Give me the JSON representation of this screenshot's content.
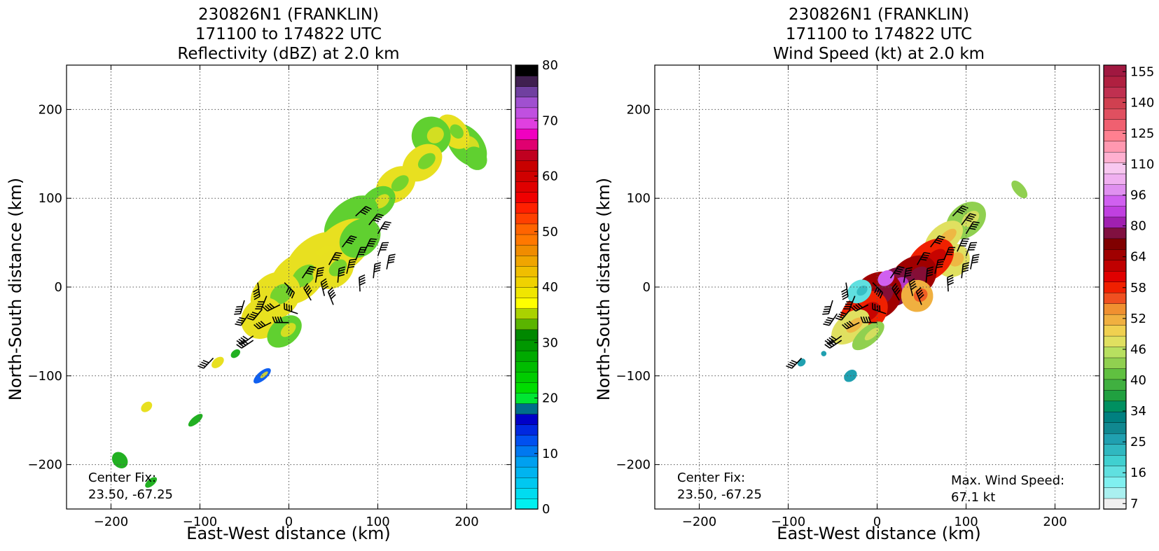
{
  "chart_data": [
    {
      "type": "heatmap",
      "title_lines": [
        "230826N1 (FRANKLIN)",
        "171100 to 174822 UTC",
        "Reflectivity (dBZ) at 2.0 km"
      ],
      "xlabel": "East-West distance (km)",
      "ylabel": "North-South distance (km)",
      "xlim": [
        -250,
        250
      ],
      "ylim": [
        -250,
        250
      ],
      "xticks": [
        -200,
        -100,
        0,
        100,
        200
      ],
      "yticks": [
        -200,
        -100,
        0,
        100,
        200
      ],
      "grid": true,
      "annotations": [
        {
          "text_lines": [
            "Center Fix:",
            "23.50, -67.25"
          ],
          "position": "bottom-left"
        }
      ],
      "colorbar": {
        "min": 0,
        "max": 80,
        "ticks": [
          0,
          10,
          20,
          30,
          40,
          50,
          60,
          70,
          80
        ],
        "colors": [
          "#00f0f0",
          "#00dcf0",
          "#00c8f0",
          "#00b4f0",
          "#00a0f0",
          "#0078f0",
          "#0050f0",
          "#0028e0",
          "#0000c8",
          "#006e8a",
          "#00e632",
          "#00dc00",
          "#00cc00",
          "#00bc00",
          "#00aa00",
          "#009800",
          "#008800",
          "#5ab400",
          "#aad200",
          "#ffff00",
          "#f0e600",
          "#f0d200",
          "#f0be00",
          "#f0a500",
          "#f08c00",
          "#ff7800",
          "#ff6400",
          "#ff4000",
          "#ff2000",
          "#f00000",
          "#e00000",
          "#d00000",
          "#c80000",
          "#c00020",
          "#e00070",
          "#f000c0",
          "#e040e0",
          "#c050e0",
          "#a050d0",
          "#7040a0",
          "#402050",
          "#000000"
        ]
      },
      "blobs": [
        [
          200,
          160,
          18,
          28,
          0.6
        ],
        [
          185,
          175,
          15,
          22,
          0.7
        ],
        [
          210,
          145,
          12,
          14,
          0.6
        ],
        [
          160,
          170,
          22,
          22,
          0.6
        ],
        [
          150,
          140,
          25,
          18,
          0.7
        ],
        [
          120,
          115,
          25,
          18,
          0.7
        ],
        [
          100,
          95,
          22,
          16,
          0.6
        ],
        [
          70,
          75,
          35,
          22,
          0.6
        ],
        [
          60,
          45,
          40,
          25,
          0.7
        ],
        [
          30,
          30,
          40,
          25,
          0.7
        ],
        [
          10,
          10,
          35,
          25,
          0.7
        ],
        [
          -15,
          -10,
          30,
          25,
          0.7
        ],
        [
          -30,
          -35,
          25,
          22,
          0.7
        ],
        [
          50,
          20,
          25,
          20,
          0.7
        ],
        [
          80,
          55,
          25,
          20,
          0.6
        ],
        [
          -5,
          -50,
          22,
          15,
          0.6
        ],
        [
          -80,
          -85,
          8,
          5,
          0.7
        ],
        [
          -60,
          -75,
          6,
          4,
          0.4
        ],
        [
          -30,
          -100,
          12,
          5,
          0.2
        ],
        [
          -160,
          -135,
          7,
          5,
          0.0
        ],
        [
          -105,
          -150,
          10,
          4,
          0.4
        ],
        [
          -190,
          -195,
          8,
          10,
          0.5
        ],
        [
          -155,
          -220,
          8,
          4,
          0.4
        ]
      ],
      "dbz_colors": {
        "light_green": "#60d030",
        "green": "#22b022",
        "dark_green": "#0aa010",
        "yellow": "#e8e020",
        "orange": "#f0c020",
        "blue": "#1060f0"
      },
      "barbs": [
        [
          75,
          80
        ],
        [
          90,
          70
        ],
        [
          100,
          60
        ],
        [
          85,
          40
        ],
        [
          100,
          35
        ],
        [
          110,
          20
        ],
        [
          95,
          10
        ],
        [
          60,
          45
        ],
        [
          75,
          30
        ],
        [
          65,
          15
        ],
        [
          80,
          -5
        ],
        [
          45,
          25
        ],
        [
          55,
          5
        ],
        [
          40,
          -10
        ],
        [
          30,
          5
        ],
        [
          15,
          10
        ],
        [
          25,
          -15
        ],
        [
          10,
          -30
        ],
        [
          -10,
          -20
        ],
        [
          -5,
          5
        ],
        [
          -25,
          -10
        ],
        [
          -30,
          -25
        ],
        [
          -45,
          -30
        ],
        [
          -50,
          -15
        ],
        [
          -35,
          5
        ],
        [
          -20,
          -40
        ],
        [
          -40,
          -55
        ],
        [
          0,
          -40
        ],
        [
          50,
          -20
        ],
        [
          -85,
          -80
        ],
        [
          -40,
          -60
        ]
      ]
    },
    {
      "type": "heatmap",
      "title_lines": [
        "230826N1 (FRANKLIN)",
        "171100 to 174822 UTC",
        "Wind Speed (kt) at 2.0 km"
      ],
      "xlabel": "East-West distance (km)",
      "ylabel": "North-South distance (km)",
      "xlim": [
        -250,
        250
      ],
      "ylim": [
        -250,
        250
      ],
      "xticks": [
        -200,
        -100,
        0,
        100,
        200
      ],
      "yticks": [
        -200,
        -100,
        0,
        100,
        200
      ],
      "grid": true,
      "annotations": [
        {
          "text_lines": [
            "Center Fix:",
            "23.50, -67.25"
          ],
          "position": "bottom-left"
        },
        {
          "text_lines": [
            "Max. Wind Speed:",
            "67.1 kt"
          ],
          "position": "bottom-right"
        }
      ],
      "colorbar": {
        "min": 7,
        "max": 160,
        "ticks": [
          7,
          16,
          25,
          34,
          40,
          46,
          52,
          58,
          64,
          80,
          96,
          110,
          125,
          140,
          155
        ],
        "colors": [
          "#f0f0f0",
          "#aaf0f0",
          "#80f0f0",
          "#60e0e0",
          "#40d0d0",
          "#30b8c0",
          "#20a0b0",
          "#108890",
          "#008080",
          "#009060",
          "#20a040",
          "#40b040",
          "#60c040",
          "#90d050",
          "#b8e060",
          "#e0e060",
          "#f0d050",
          "#f0b040",
          "#f09030",
          "#f05020",
          "#f02000",
          "#e00000",
          "#c00000",
          "#a00000",
          "#800000",
          "#801040",
          "#a020b0",
          "#c040e0",
          "#d060f0",
          "#e090f0",
          "#f0b0f0",
          "#f8c8f0",
          "#ffb0d0",
          "#ff98b0",
          "#ff8090",
          "#f06070",
          "#e05060",
          "#d04050",
          "#c03050",
          "#b02040",
          "#a01840"
        ]
      },
      "blobs": [
        [
          160,
          110,
          6,
          12,
          0.45
        ],
        [
          100,
          75,
          25,
          18,
          0.45
        ],
        [
          75,
          55,
          25,
          15,
          0.5
        ],
        [
          85,
          30,
          20,
          18,
          0.5
        ],
        [
          60,
          30,
          30,
          20,
          0.7
        ],
        [
          40,
          10,
          30,
          22,
          0.8
        ],
        [
          20,
          0,
          25,
          20,
          0.85
        ],
        [
          0,
          -10,
          30,
          25,
          0.8
        ],
        [
          -15,
          -30,
          30,
          22,
          0.7
        ],
        [
          -30,
          -45,
          25,
          15,
          0.5
        ],
        [
          -10,
          -55,
          22,
          10,
          0.45
        ],
        [
          -20,
          -5,
          15,
          12,
          0.1
        ],
        [
          10,
          10,
          10,
          8,
          0.95
        ],
        [
          45,
          -10,
          18,
          18,
          0.6
        ],
        [
          -85,
          -85,
          5,
          4,
          0.2
        ],
        [
          -60,
          -75,
          3,
          3,
          0.2
        ],
        [
          -30,
          -100,
          8,
          6,
          0.2
        ]
      ],
      "barbs": [
        [
          85,
          80
        ],
        [
          95,
          70
        ],
        [
          100,
          60
        ],
        [
          90,
          40
        ],
        [
          100,
          35
        ],
        [
          105,
          20
        ],
        [
          95,
          10
        ],
        [
          60,
          45
        ],
        [
          75,
          30
        ],
        [
          65,
          15
        ],
        [
          80,
          -5
        ],
        [
          45,
          25
        ],
        [
          55,
          5
        ],
        [
          40,
          -10
        ],
        [
          30,
          5
        ],
        [
          15,
          10
        ],
        [
          25,
          -15
        ],
        [
          10,
          -30
        ],
        [
          -10,
          -20
        ],
        [
          -5,
          5
        ],
        [
          -25,
          -10
        ],
        [
          -30,
          -25
        ],
        [
          -45,
          -30
        ],
        [
          -50,
          -15
        ],
        [
          -35,
          5
        ],
        [
          -20,
          -40
        ],
        [
          -40,
          -55
        ],
        [
          0,
          -40
        ],
        [
          50,
          -20
        ],
        [
          -85,
          -80
        ],
        [
          -40,
          -60
        ]
      ]
    }
  ]
}
